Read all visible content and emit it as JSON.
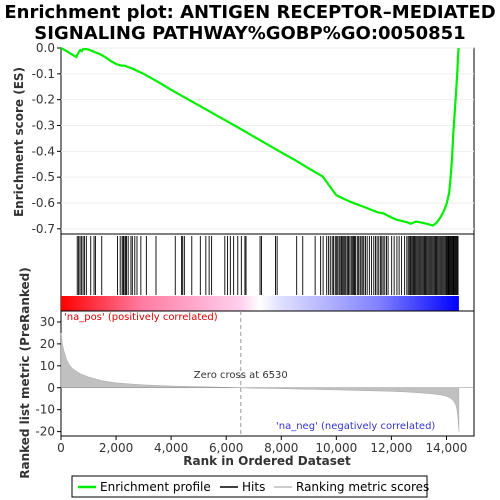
{
  "chart_data": {
    "type": "line",
    "title_line1": "Enrichment plot: ANTIGEN RECEPTOR–MEDIATED",
    "title_line2": "SIGNALING PATHWAY%GOBP%GO:0050851",
    "top_panel": {
      "ylabel": "Enrichment score (ES)",
      "ylim": [
        -0.72,
        0.0
      ],
      "yticks": [
        0.0,
        -0.1,
        -0.2,
        -0.3,
        -0.4,
        -0.5,
        -0.6,
        -0.7
      ],
      "ytick_labels": [
        "0.0",
        "-0.1",
        "-0.2",
        "-0.3",
        "-0.4",
        "-0.5",
        "-0.6",
        "-0.7"
      ],
      "series_name": "Enrichment profile",
      "color": "#00ee00",
      "x": [
        0,
        200,
        400,
        560,
        600,
        650,
        700,
        760,
        800,
        900,
        1000,
        1100,
        1200,
        1400,
        1600,
        1800,
        2000,
        2100,
        2200,
        2300,
        2400,
        2600,
        2800,
        3000,
        3200,
        3500,
        4000,
        4500,
        5000,
        5500,
        6000,
        6500,
        7000,
        7500,
        8000,
        8500,
        9000,
        9500,
        10000,
        10500,
        11000,
        11500,
        11700,
        11800,
        12000,
        12200,
        12400,
        12600,
        12700,
        12800,
        12900,
        13000,
        13200,
        13400,
        13500,
        13600,
        13700,
        13800,
        13900,
        14000,
        14100,
        14150,
        14200,
        14250,
        14300,
        14350,
        14400,
        14420,
        14440
      ],
      "y": [
        0.0,
        -0.012,
        -0.025,
        -0.035,
        -0.025,
        -0.015,
        -0.008,
        -0.012,
        -0.005,
        -0.004,
        -0.006,
        -0.01,
        -0.015,
        -0.023,
        -0.035,
        -0.05,
        -0.062,
        -0.066,
        -0.068,
        -0.068,
        -0.072,
        -0.08,
        -0.09,
        -0.1,
        -0.112,
        -0.13,
        -0.162,
        -0.192,
        -0.222,
        -0.252,
        -0.282,
        -0.312,
        -0.343,
        -0.373,
        -0.404,
        -0.434,
        -0.466,
        -0.497,
        -0.57,
        -0.595,
        -0.615,
        -0.636,
        -0.64,
        -0.645,
        -0.656,
        -0.665,
        -0.67,
        -0.676,
        -0.68,
        -0.676,
        -0.672,
        -0.674,
        -0.678,
        -0.684,
        -0.687,
        -0.68,
        -0.668,
        -0.652,
        -0.632,
        -0.605,
        -0.56,
        -0.5,
        -0.43,
        -0.33,
        -0.25,
        -0.17,
        -0.08,
        -0.03,
        0.0
      ]
    },
    "hits_panel": {
      "series_name": "Hits",
      "hit_ranks": [
        590,
        640,
        690,
        740,
        800,
        850,
        920,
        1080,
        1200,
        1250,
        1480,
        2050,
        2150,
        2220,
        2260,
        2290,
        2340,
        2380,
        2440,
        2540,
        2590,
        2680,
        2760,
        2900,
        3100,
        3450,
        4150,
        4380,
        4420,
        4480,
        4750,
        5060,
        5260,
        5380,
        5470,
        5950,
        6050,
        6150,
        6270,
        6420,
        6550,
        6680,
        6720,
        7230,
        7280,
        7790,
        7850,
        8560,
        8780,
        9230,
        9430,
        9520,
        9650,
        9720,
        9780,
        9850,
        9900,
        9960,
        10000,
        10050,
        10100,
        10140,
        10190,
        10230,
        10270,
        10310,
        10350,
        10400,
        10440,
        10490,
        10540,
        10580,
        10620,
        10660,
        10700,
        10760,
        10800,
        10860,
        10900,
        10960,
        11000,
        11060,
        11120,
        11200,
        11280,
        11360,
        11420,
        11480,
        11540,
        11600,
        11650,
        11700,
        11760,
        11820,
        11880,
        12010,
        12100,
        12200,
        12280,
        12370,
        12480,
        12560,
        12610,
        12650,
        12690,
        12720,
        12760,
        12800,
        12840,
        12880,
        12920,
        12960,
        13000,
        13040,
        13080,
        13120,
        13160,
        13200,
        13240,
        13280,
        13320,
        13360,
        13400,
        13440,
        13480,
        13520,
        13560,
        13600,
        13640,
        13680,
        13720,
        13760,
        13800,
        13840,
        13880,
        13920,
        13960,
        14000,
        14030,
        14060,
        14090,
        14120,
        14150,
        14180,
        14210,
        14240,
        14270,
        14300,
        14330,
        14360,
        14390,
        14420
      ],
      "colormap": [
        "#ff0000",
        "#ffb3e6",
        "#e6e6ff",
        "#0000ff"
      ]
    },
    "metric_panel": {
      "ylabel": "Ranked list metric (PreRanked)",
      "ylim": [
        -22,
        35
      ],
      "yticks": [
        30,
        20,
        10,
        0,
        -10,
        -20
      ],
      "ytick_labels": [
        "30",
        "20",
        "10",
        "0",
        "-10",
        "-20"
      ],
      "series_name": "Ranking metric scores",
      "x": [
        0,
        50,
        100,
        200,
        300,
        400,
        500,
        700,
        1000,
        1500,
        2000,
        3000,
        4000,
        5000,
        6000,
        6530,
        7000,
        8000,
        9000,
        10000,
        11000,
        12000,
        12500,
        13000,
        13500,
        13800,
        14000,
        14150,
        14250,
        14330,
        14380,
        14420,
        14450
      ],
      "y": [
        25,
        20,
        17,
        13,
        10.5,
        9,
        8,
        6.4,
        4.9,
        3.2,
        2.2,
        1.3,
        0.8,
        0.5,
        0.2,
        0.0,
        -0.2,
        -0.4,
        -0.7,
        -1.0,
        -1.3,
        -1.6,
        -1.9,
        -2.3,
        -2.8,
        -3.3,
        -3.9,
        -4.8,
        -6,
        -7.5,
        -10,
        -14,
        -20
      ],
      "zero_cross_label": "Zero cross at 6530",
      "zero_cross_rank": 6530,
      "pos_label": "'na_pos' (positively correlated)",
      "neg_label": "'na_neg' (negatively correlated)"
    },
    "xaxis": {
      "xlabel": "Rank in Ordered Dataset",
      "xlim": [
        0,
        15000
      ],
      "xticks": [
        0,
        2000,
        4000,
        6000,
        8000,
        10000,
        12000,
        14000
      ],
      "xtick_labels": [
        "0",
        "2,000",
        "4,000",
        "6,000",
        "8,000",
        "10,000",
        "12,000",
        "14,000"
      ],
      "n_genes": 14450
    },
    "legend": {
      "placement": "bottom",
      "items": [
        {
          "label": "Enrichment profile",
          "color": "#00ee00"
        },
        {
          "label": "Hits",
          "color": "#000000"
        },
        {
          "label": "Ranking metric scores",
          "color": "#bbbbbb"
        }
      ]
    }
  }
}
